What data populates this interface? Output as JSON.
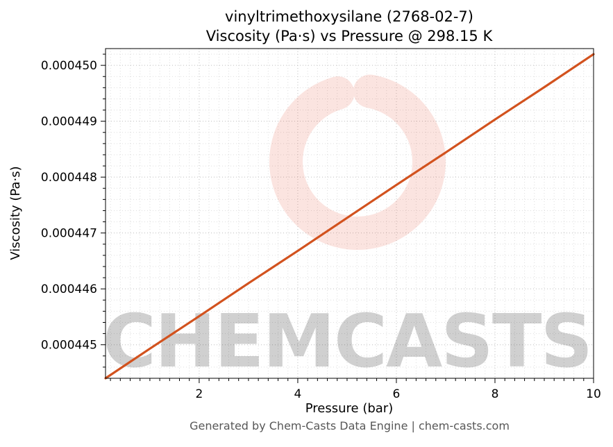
{
  "chart_data": {
    "type": "line",
    "title": "vinyltrimethoxysilane (2768-02-7) — Viscosity (Pa·s) vs Pressure @ 298.15 K",
    "title_line1": "vinyltrimethoxysilane (2768-02-7)",
    "title_line2": "Viscosity (Pa·s) vs Pressure @ 298.15 K",
    "xlabel": "Pressure (bar)",
    "ylabel": "Viscosity (Pa·s)",
    "xlim": [
      0.1,
      10
    ],
    "ylim": [
      0.0004444,
      0.0004503
    ],
    "xticks": [
      2,
      4,
      6,
      8,
      10
    ],
    "xtick_labels": [
      "2",
      "4",
      "6",
      "8",
      "10"
    ],
    "yticks": [
      0.000445,
      0.000446,
      0.000447,
      0.000448,
      0.000449,
      0.00045
    ],
    "ytick_labels": [
      "0.000445",
      "0.000446",
      "0.000447",
      "0.000448",
      "0.000449",
      "0.000450"
    ],
    "x_minor_step": 0.2,
    "y_minor_step": 2e-07,
    "grid": "both-dotted",
    "legend": "none",
    "x": [
      0.1,
      1,
      2,
      3,
      4,
      5,
      6,
      7,
      8,
      9,
      10
    ],
    "series": [
      {
        "name": "viscosity",
        "values": [
          0.0004444,
          0.00044493,
          0.00044551,
          0.0004461,
          0.00044668,
          0.00044727,
          0.00044786,
          0.00044844,
          0.00044903,
          0.00044961,
          0.0004502
        ]
      }
    ],
    "line_color": "#d2521e"
  },
  "watermark": {
    "text": "CHEMCASTS",
    "color": "#e8543c"
  },
  "footer": {
    "text": "Generated by Chem-Casts Data Engine | chem-casts.com"
  }
}
